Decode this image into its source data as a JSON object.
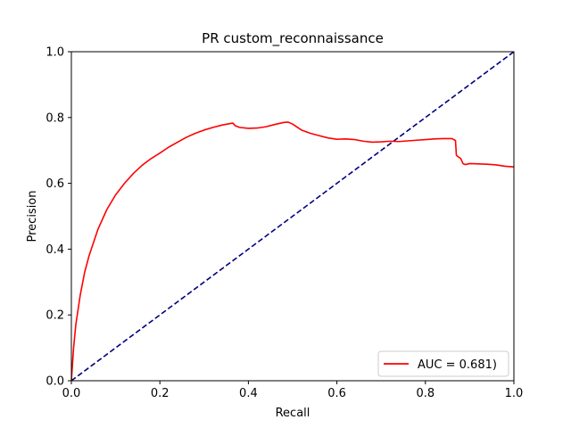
{
  "chart_data": {
    "type": "line",
    "title": "PR custom_reconnaissance",
    "xlabel": "Recall",
    "ylabel": "Precision",
    "xlim": [
      0.0,
      1.0
    ],
    "ylim": [
      0.0,
      1.0
    ],
    "xticks": [
      "0.0",
      "0.2",
      "0.4",
      "0.6",
      "0.8",
      "1.0"
    ],
    "yticks": [
      "0.0",
      "0.2",
      "0.4",
      "0.6",
      "0.8",
      "1.0"
    ],
    "grid": false,
    "legend_position": "bottom-right",
    "series": [
      {
        "name": "AUC = 0.681)",
        "color": "#ff0000",
        "style": "solid",
        "x": [
          0.0,
          0.005,
          0.01,
          0.02,
          0.03,
          0.04,
          0.05,
          0.06,
          0.08,
          0.1,
          0.12,
          0.14,
          0.16,
          0.18,
          0.2,
          0.22,
          0.24,
          0.26,
          0.28,
          0.3,
          0.32,
          0.34,
          0.36,
          0.365,
          0.37,
          0.38,
          0.4,
          0.42,
          0.44,
          0.46,
          0.48,
          0.49,
          0.5,
          0.52,
          0.54,
          0.56,
          0.58,
          0.6,
          0.62,
          0.64,
          0.66,
          0.68,
          0.7,
          0.72,
          0.74,
          0.76,
          0.78,
          0.8,
          0.82,
          0.84,
          0.86,
          0.868,
          0.87,
          0.875,
          0.88,
          0.885,
          0.89,
          0.9,
          0.92,
          0.94,
          0.96,
          0.98,
          1.0
        ],
        "y": [
          0.0,
          0.1,
          0.17,
          0.26,
          0.33,
          0.38,
          0.42,
          0.46,
          0.52,
          0.565,
          0.6,
          0.63,
          0.655,
          0.675,
          0.692,
          0.71,
          0.725,
          0.74,
          0.752,
          0.762,
          0.77,
          0.777,
          0.782,
          0.783,
          0.775,
          0.77,
          0.767,
          0.768,
          0.772,
          0.779,
          0.785,
          0.786,
          0.78,
          0.762,
          0.752,
          0.745,
          0.738,
          0.734,
          0.735,
          0.733,
          0.728,
          0.725,
          0.726,
          0.728,
          0.727,
          0.729,
          0.731,
          0.733,
          0.735,
          0.736,
          0.736,
          0.73,
          0.685,
          0.68,
          0.675,
          0.66,
          0.657,
          0.66,
          0.659,
          0.658,
          0.656,
          0.652,
          0.65
        ]
      },
      {
        "name": "",
        "color": "#000080",
        "style": "dashed",
        "x": [
          0.0,
          1.0
        ],
        "y": [
          0.0,
          1.0
        ]
      }
    ]
  }
}
